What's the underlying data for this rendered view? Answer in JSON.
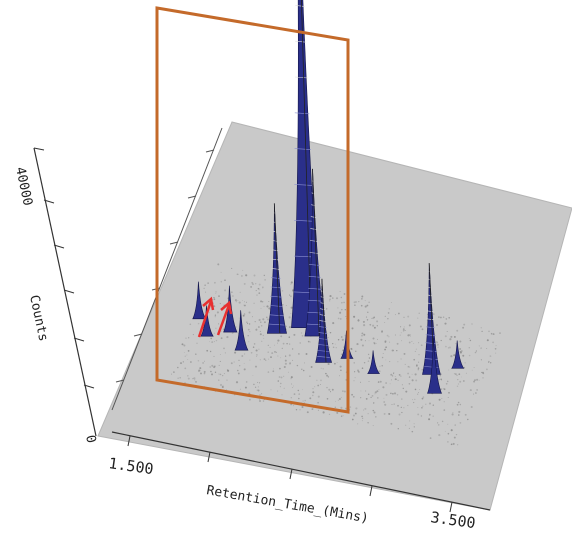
{
  "chart_data": {
    "type": "surface",
    "x_axis": {
      "label": "Retention_Time_(Mins)",
      "ticks": [
        "1.500",
        "3.500"
      ],
      "range": [
        1.5,
        3.5
      ]
    },
    "z_axis": {
      "label": "Counts",
      "ticks": [
        "40000",
        "0"
      ]
    },
    "peaks": [
      {
        "rt": 1.72,
        "depth": 0.35,
        "height": 4000
      },
      {
        "rt": 1.8,
        "depth": 0.3,
        "height": 3300
      },
      {
        "rt": 1.92,
        "depth": 0.33,
        "height": 5000
      },
      {
        "rt": 2.02,
        "depth": 0.28,
        "height": 4300
      },
      {
        "rt": 2.18,
        "depth": 0.36,
        "height": 14000
      },
      {
        "rt": 2.33,
        "depth": 0.4,
        "height": 54000
      },
      {
        "rt": 2.4,
        "depth": 0.38,
        "height": 18000
      },
      {
        "rt": 2.5,
        "depth": 0.3,
        "height": 9000
      },
      {
        "rt": 2.62,
        "depth": 0.33,
        "height": 3000
      },
      {
        "rt": 2.8,
        "depth": 0.3,
        "height": 2500
      },
      {
        "rt": 3.12,
        "depth": 0.34,
        "height": 12000
      },
      {
        "rt": 3.18,
        "depth": 0.28,
        "height": 6000
      },
      {
        "rt": 3.25,
        "depth": 0.38,
        "height": 3000
      }
    ],
    "highlight_region": {
      "color": "#c46a2a"
    },
    "arrows": {
      "count": 2,
      "color": "#e83030"
    },
    "colors": {
      "floor": "#c9c9c9",
      "peak": "#2a2f8a",
      "noise": "#8a8a8a"
    }
  }
}
